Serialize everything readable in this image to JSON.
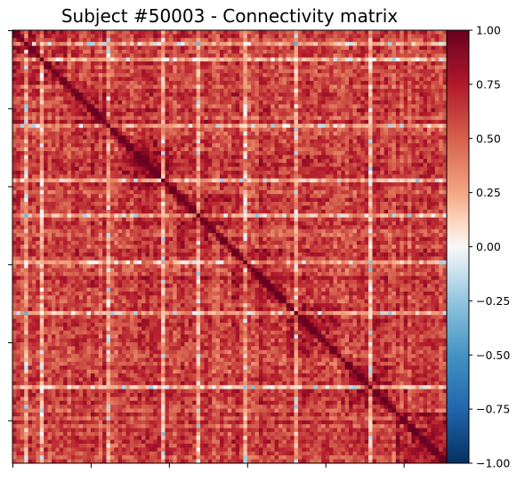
{
  "chart_data": {
    "type": "heatmap",
    "title": "Subject #50003 - Connectivity matrix",
    "xlabel": "",
    "ylabel": "",
    "matrix_size": 111,
    "diagonal_value": 1.0,
    "symmetric": true,
    "value_range": [
      -1.0,
      1.0
    ],
    "colormap": "RdBu_r",
    "colormap_stops": [
      {
        "value": -1.0,
        "color": "#053061"
      },
      {
        "value": -0.75,
        "color": "#2166ac"
      },
      {
        "value": -0.5,
        "color": "#4393c3"
      },
      {
        "value": -0.25,
        "color": "#92c5de"
      },
      {
        "value": -0.1,
        "color": "#d1e5f0"
      },
      {
        "value": 0.0,
        "color": "#f7f7f7"
      },
      {
        "value": 0.1,
        "color": "#fddbc7"
      },
      {
        "value": 0.25,
        "color": "#f4a582"
      },
      {
        "value": 0.5,
        "color": "#d6604d"
      },
      {
        "value": 0.75,
        "color": "#b2182b"
      },
      {
        "value": 1.0,
        "color": "#67001f"
      }
    ],
    "x_ticks": 6,
    "y_ticks": 6,
    "x_tick_labels_shown": false,
    "y_tick_labels_shown": false,
    "colorbar": {
      "ticks": [
        1.0,
        0.75,
        0.5,
        0.25,
        0.0,
        -0.25,
        -0.5,
        -0.75,
        -1.0
      ],
      "tick_labels": [
        "1.00",
        "0.75",
        "0.50",
        "0.25",
        "0.00",
        "−0.25",
        "−0.50",
        "−0.75",
        "−1.00"
      ]
    }
  }
}
